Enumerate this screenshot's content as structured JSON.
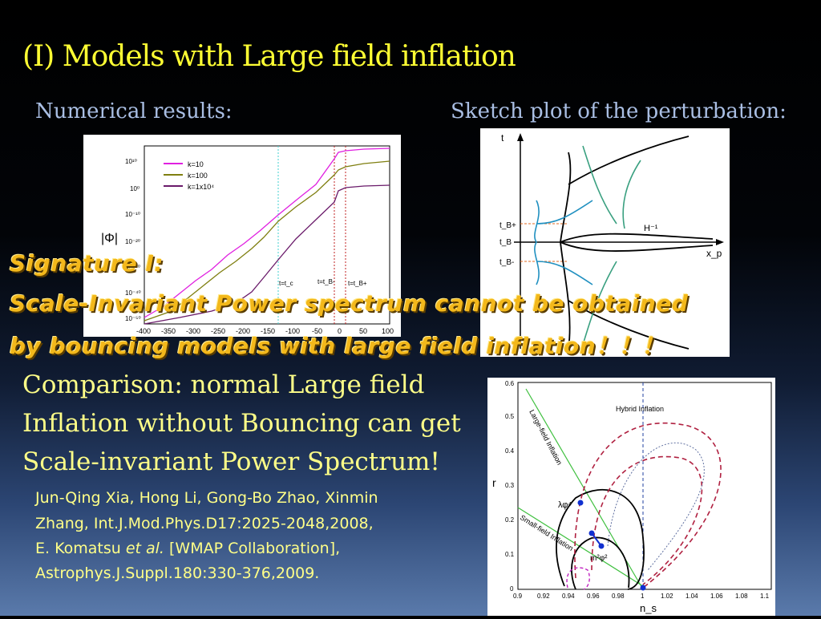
{
  "title": "(I) Models with Large field inflation",
  "numerical_label": "Numerical results:",
  "sketch_label": "Sketch plot of the perturbation:",
  "signature": {
    "line1": "Signature I:",
    "line2": "Scale-Invariant Power spectrum cannot be obtained",
    "line3": "by bouncing models with large field inflation！！！"
  },
  "comparison": {
    "line1": "Comparison: normal Large field",
    "line2": "Inflation without Bouncing can get",
    "line3": "Scale-invariant Power Spectrum!"
  },
  "reference": {
    "line1": "Jun-Qing Xia, Hong Li, Gong-Bo Zhao, Xinmin",
    "line2": "Zhang, Int.J.Mod.Phys.D17:2025-2048,2008,",
    "line3_pre": "E. Komatsu ",
    "line3_em": "et al.",
    "line3_post": " [WMAP Collaboration],",
    "line4": "Astrophys.J.Suppl.180:330-376,2009."
  },
  "numerical_plot": {
    "ylabel": "|Φ|",
    "legend": [
      "k=10",
      "k=100",
      "k=1x10⁴"
    ],
    "series_colors": [
      "#e020e0",
      "#7f7f10",
      "#6a1a6a"
    ],
    "yticks": [
      "10¹⁰",
      "10⁰",
      "10⁻¹⁰",
      "10⁻²⁰",
      "10⁻³⁰",
      "10⁻⁴⁰",
      "10⁻⁵⁰"
    ],
    "xticks": [
      "-400",
      "-350",
      "-300",
      "-250",
      "-200",
      "-150",
      "-100",
      "-50",
      "0",
      "50",
      "100"
    ],
    "annotations": [
      "t=t_c",
      "t=t_B-",
      "t=t_B+"
    ]
  },
  "sketch_plot": {
    "t_axis": "t",
    "x_axis": "x_p",
    "t_labels": [
      "t_B+",
      "t_B",
      "t_B-"
    ],
    "curve_label": "H⁻¹"
  },
  "wmap_plot": {
    "ylabel": "r",
    "xlabel": "n_s",
    "yticks": [
      "0",
      "0.1",
      "0.2",
      "0.3",
      "0.4",
      "0.5",
      "0.6"
    ],
    "xticks": [
      "0.9",
      "0.92",
      "0.94",
      "0.96",
      "0.98",
      "1",
      "1.02",
      "1.04",
      "1.06",
      "1.08",
      "1.1"
    ],
    "labels": {
      "hybrid": "Hybrid Inflation",
      "large_field": "Large-field Inflation",
      "small_field": "Small-field Inflation",
      "lambda_phi4": "λφ⁴",
      "m2phi2": "m²φ²"
    }
  }
}
